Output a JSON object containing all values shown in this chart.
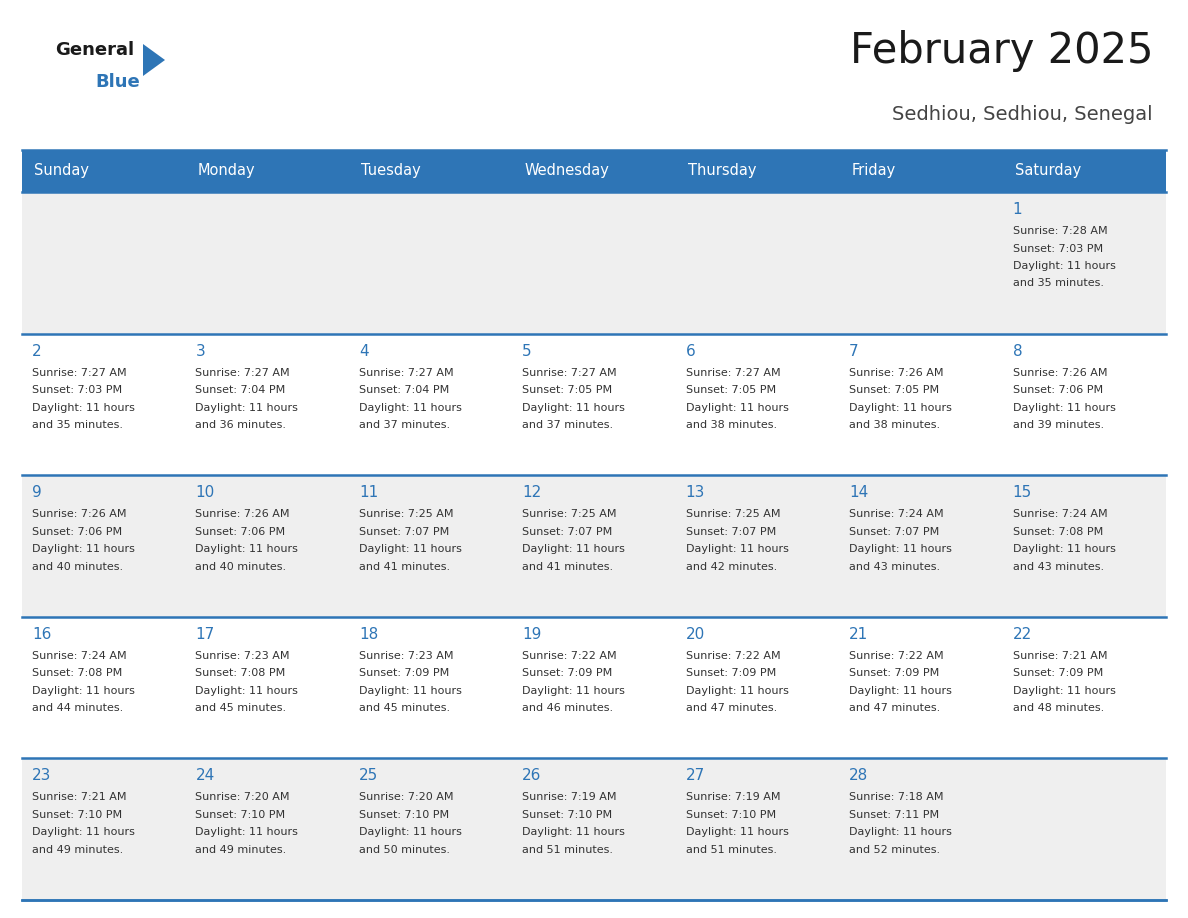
{
  "title": "February 2025",
  "subtitle": "Sedhiou, Sedhiou, Senegal",
  "days_of_week": [
    "Sunday",
    "Monday",
    "Tuesday",
    "Wednesday",
    "Thursday",
    "Friday",
    "Saturday"
  ],
  "header_bg": "#2E75B6",
  "header_text": "#FFFFFF",
  "cell_bg_light": "#EFEFEF",
  "cell_bg_white": "#FFFFFF",
  "cell_text": "#333333",
  "day_num_color": "#2E75B6",
  "separator_color": "#2E75B6",
  "title_color": "#1A1A1A",
  "subtitle_color": "#444444",
  "logo_general_color": "#1A1A1A",
  "logo_blue_color": "#2E75B6",
  "logo_triangle_color": "#2E75B6",
  "calendar": [
    [
      {
        "day": null,
        "sunrise": null,
        "sunset": null,
        "daylight": null
      },
      {
        "day": null,
        "sunrise": null,
        "sunset": null,
        "daylight": null
      },
      {
        "day": null,
        "sunrise": null,
        "sunset": null,
        "daylight": null
      },
      {
        "day": null,
        "sunrise": null,
        "sunset": null,
        "daylight": null
      },
      {
        "day": null,
        "sunrise": null,
        "sunset": null,
        "daylight": null
      },
      {
        "day": null,
        "sunrise": null,
        "sunset": null,
        "daylight": null
      },
      {
        "day": 1,
        "sunrise": "7:28 AM",
        "sunset": "7:03 PM",
        "daylight": "11 hours and 35 minutes."
      }
    ],
    [
      {
        "day": 2,
        "sunrise": "7:27 AM",
        "sunset": "7:03 PM",
        "daylight": "11 hours and 35 minutes."
      },
      {
        "day": 3,
        "sunrise": "7:27 AM",
        "sunset": "7:04 PM",
        "daylight": "11 hours and 36 minutes."
      },
      {
        "day": 4,
        "sunrise": "7:27 AM",
        "sunset": "7:04 PM",
        "daylight": "11 hours and 37 minutes."
      },
      {
        "day": 5,
        "sunrise": "7:27 AM",
        "sunset": "7:05 PM",
        "daylight": "11 hours and 37 minutes."
      },
      {
        "day": 6,
        "sunrise": "7:27 AM",
        "sunset": "7:05 PM",
        "daylight": "11 hours and 38 minutes."
      },
      {
        "day": 7,
        "sunrise": "7:26 AM",
        "sunset": "7:05 PM",
        "daylight": "11 hours and 38 minutes."
      },
      {
        "day": 8,
        "sunrise": "7:26 AM",
        "sunset": "7:06 PM",
        "daylight": "11 hours and 39 minutes."
      }
    ],
    [
      {
        "day": 9,
        "sunrise": "7:26 AM",
        "sunset": "7:06 PM",
        "daylight": "11 hours and 40 minutes."
      },
      {
        "day": 10,
        "sunrise": "7:26 AM",
        "sunset": "7:06 PM",
        "daylight": "11 hours and 40 minutes."
      },
      {
        "day": 11,
        "sunrise": "7:25 AM",
        "sunset": "7:07 PM",
        "daylight": "11 hours and 41 minutes."
      },
      {
        "day": 12,
        "sunrise": "7:25 AM",
        "sunset": "7:07 PM",
        "daylight": "11 hours and 41 minutes."
      },
      {
        "day": 13,
        "sunrise": "7:25 AM",
        "sunset": "7:07 PM",
        "daylight": "11 hours and 42 minutes."
      },
      {
        "day": 14,
        "sunrise": "7:24 AM",
        "sunset": "7:07 PM",
        "daylight": "11 hours and 43 minutes."
      },
      {
        "day": 15,
        "sunrise": "7:24 AM",
        "sunset": "7:08 PM",
        "daylight": "11 hours and 43 minutes."
      }
    ],
    [
      {
        "day": 16,
        "sunrise": "7:24 AM",
        "sunset": "7:08 PM",
        "daylight": "11 hours and 44 minutes."
      },
      {
        "day": 17,
        "sunrise": "7:23 AM",
        "sunset": "7:08 PM",
        "daylight": "11 hours and 45 minutes."
      },
      {
        "day": 18,
        "sunrise": "7:23 AM",
        "sunset": "7:09 PM",
        "daylight": "11 hours and 45 minutes."
      },
      {
        "day": 19,
        "sunrise": "7:22 AM",
        "sunset": "7:09 PM",
        "daylight": "11 hours and 46 minutes."
      },
      {
        "day": 20,
        "sunrise": "7:22 AM",
        "sunset": "7:09 PM",
        "daylight": "11 hours and 47 minutes."
      },
      {
        "day": 21,
        "sunrise": "7:22 AM",
        "sunset": "7:09 PM",
        "daylight": "11 hours and 47 minutes."
      },
      {
        "day": 22,
        "sunrise": "7:21 AM",
        "sunset": "7:09 PM",
        "daylight": "11 hours and 48 minutes."
      }
    ],
    [
      {
        "day": 23,
        "sunrise": "7:21 AM",
        "sunset": "7:10 PM",
        "daylight": "11 hours and 49 minutes."
      },
      {
        "day": 24,
        "sunrise": "7:20 AM",
        "sunset": "7:10 PM",
        "daylight": "11 hours and 49 minutes."
      },
      {
        "day": 25,
        "sunrise": "7:20 AM",
        "sunset": "7:10 PM",
        "daylight": "11 hours and 50 minutes."
      },
      {
        "day": 26,
        "sunrise": "7:19 AM",
        "sunset": "7:10 PM",
        "daylight": "11 hours and 51 minutes."
      },
      {
        "day": 27,
        "sunrise": "7:19 AM",
        "sunset": "7:10 PM",
        "daylight": "11 hours and 51 minutes."
      },
      {
        "day": 28,
        "sunrise": "7:18 AM",
        "sunset": "7:11 PM",
        "daylight": "11 hours and 52 minutes."
      },
      {
        "day": null,
        "sunrise": null,
        "sunset": null,
        "daylight": null
      }
    ]
  ]
}
